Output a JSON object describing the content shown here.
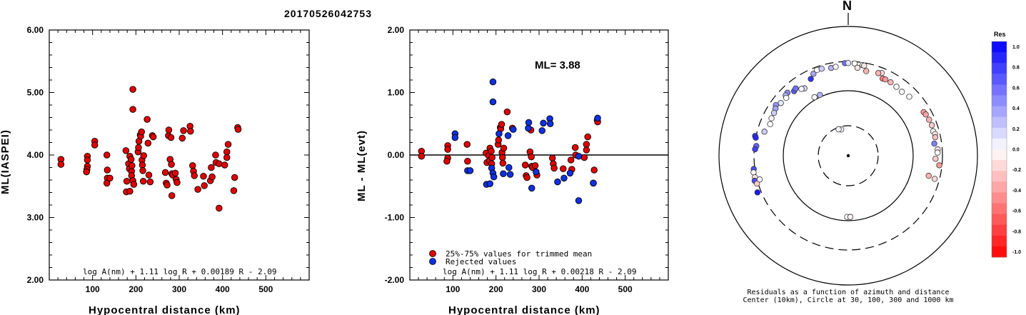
{
  "title": "20170526042753",
  "chart_data": [
    {
      "type": "scatter",
      "id": "ml-vs-distance",
      "ylabel": "ML(IASPEI)",
      "xlabel": "Hypocentral distance (km)",
      "xlim": [
        0,
        600
      ],
      "ylim": [
        2.0,
        6.0
      ],
      "xticks": [
        "100",
        "200",
        "300",
        "400",
        "500"
      ],
      "yticks": [
        "2.00",
        "3.00",
        "4.00",
        "5.00",
        "6.00"
      ],
      "formula": "log A(nm) + 1.11 log R + 0.00189 R - 2.09",
      "marker_color": "#e00000",
      "points": [
        [
          27,
          3.93
        ],
        [
          27,
          3.85
        ],
        [
          88,
          3.98
        ],
        [
          88,
          3.92
        ],
        [
          88,
          3.82
        ],
        [
          87,
          3.77
        ],
        [
          86,
          3.73
        ],
        [
          105,
          4.22
        ],
        [
          105,
          4.16
        ],
        [
          133,
          4.0
        ],
        [
          134,
          3.76
        ],
        [
          134,
          3.63
        ],
        [
          133,
          3.55
        ],
        [
          140,
          3.63
        ],
        [
          177,
          4.07
        ],
        [
          179,
          3.58
        ],
        [
          178,
          3.41
        ],
        [
          186,
          3.42
        ],
        [
          183,
          3.86
        ],
        [
          185,
          3.78
        ],
        [
          186,
          3.98
        ],
        [
          189,
          3.93
        ],
        [
          190,
          3.74
        ],
        [
          191,
          3.83
        ],
        [
          193,
          5.05
        ],
        [
          193,
          4.73
        ],
        [
          190,
          3.67
        ],
        [
          193,
          3.59
        ],
        [
          195,
          3.53
        ],
        [
          205,
          4.05
        ],
        [
          206,
          4.12
        ],
        [
          207,
          4.22
        ],
        [
          210,
          4.32
        ],
        [
          211,
          4.3
        ],
        [
          213,
          4.37
        ],
        [
          214,
          3.92
        ],
        [
          215,
          3.84
        ],
        [
          216,
          3.75
        ],
        [
          217,
          3.58
        ],
        [
          218,
          3.99
        ],
        [
          226,
          4.57
        ],
        [
          228,
          4.19
        ],
        [
          230,
          3.68
        ],
        [
          233,
          3.57
        ],
        [
          238,
          4.31
        ],
        [
          240,
          4.29
        ],
        [
          268,
          3.72
        ],
        [
          270,
          3.55
        ],
        [
          272,
          3.52
        ],
        [
          275,
          4.31
        ],
        [
          276,
          4.4
        ],
        [
          279,
          3.93
        ],
        [
          281,
          4.28
        ],
        [
          282,
          3.85
        ],
        [
          283,
          3.7
        ],
        [
          285,
          3.68
        ],
        [
          283,
          3.35
        ],
        [
          291,
          3.71
        ],
        [
          293,
          3.61
        ],
        [
          295,
          3.56
        ],
        [
          307,
          4.27
        ],
        [
          310,
          4.39
        ],
        [
          325,
          4.46
        ],
        [
          326,
          4.38
        ],
        [
          331,
          3.83
        ],
        [
          333,
          3.74
        ],
        [
          335,
          3.67
        ],
        [
          343,
          3.45
        ],
        [
          356,
          3.66
        ],
        [
          358,
          3.51
        ],
        [
          372,
          3.59
        ],
        [
          374,
          3.8
        ],
        [
          376,
          3.65
        ],
        [
          384,
          4.0
        ],
        [
          385,
          3.88
        ],
        [
          392,
          3.86
        ],
        [
          392,
          3.15
        ],
        [
          405,
          3.84
        ],
        [
          410,
          4.05
        ],
        [
          410,
          3.96
        ],
        [
          413,
          4.17
        ],
        [
          426,
          3.43
        ],
        [
          428,
          3.64
        ],
        [
          435,
          4.44
        ],
        [
          436,
          4.41
        ]
      ]
    },
    {
      "type": "scatter",
      "id": "residual-vs-distance",
      "ylabel": "ML - ML(evt)",
      "xlabel": "Hypocentral distance (km)",
      "xlim": [
        0,
        600
      ],
      "ylim": [
        -2.0,
        2.0
      ],
      "xticks": [
        "100",
        "200",
        "300",
        "400",
        "500"
      ],
      "yticks": [
        "-2.00",
        "-1.00",
        "0.00",
        "1.00",
        "2.00"
      ],
      "ml_label": "ML= 3.88",
      "formula": "log A(nm) + 1.11 log R + 0.00218 R - 2.09",
      "legend": [
        {
          "label": "25%-75% values for trimmed mean",
          "color": "#e00000"
        },
        {
          "label": "Rejected values",
          "color": "#1030e0"
        }
      ],
      "series": [
        {
          "name": "25%-75% values for trimmed mean",
          "color": "#e00000",
          "points": [
            [
              27,
              0.06
            ],
            [
              27,
              -0.02
            ],
            [
              88,
              0.15
            ],
            [
              88,
              0.09
            ],
            [
              88,
              -0.05
            ],
            [
              86,
              -0.1
            ],
            [
              133,
              0.17
            ],
            [
              134,
              -0.1
            ],
            [
              177,
              0.03
            ],
            [
              179,
              -0.12
            ],
            [
              183,
              -0.01
            ],
            [
              185,
              -0.09
            ],
            [
              186,
              0.11
            ],
            [
              189,
              0.06
            ],
            [
              190,
              -0.14
            ],
            [
              191,
              -0.04
            ],
            [
              205,
              0.17
            ],
            [
              206,
              0.24
            ],
            [
              210,
              0.44
            ],
            [
              211,
              0.42
            ],
            [
              213,
              0.49
            ],
            [
              214,
              0.04
            ],
            [
              215,
              -0.04
            ],
            [
              216,
              -0.13
            ],
            [
              218,
              0.11
            ],
            [
              226,
              0.69
            ],
            [
              238,
              0.43
            ],
            [
              268,
              -0.16
            ],
            [
              270,
              -0.33
            ],
            [
              272,
              -0.36
            ],
            [
              279,
              0.05
            ],
            [
              281,
              0.4
            ],
            [
              282,
              -0.03
            ],
            [
              283,
              -0.18
            ],
            [
              285,
              -0.2
            ],
            [
              291,
              -0.17
            ],
            [
              295,
              -0.32
            ],
            [
              331,
              -0.05
            ],
            [
              333,
              -0.14
            ],
            [
              335,
              -0.21
            ],
            [
              356,
              -0.22
            ],
            [
              374,
              -0.08
            ],
            [
              376,
              -0.23
            ],
            [
              384,
              0.12
            ],
            [
              385,
              0.0
            ],
            [
              405,
              -0.04
            ],
            [
              410,
              0.17
            ],
            [
              410,
              0.08
            ],
            [
              413,
              0.29
            ],
            [
              426,
              -0.45
            ],
            [
              428,
              -0.24
            ],
            [
              435,
              0.56
            ],
            [
              436,
              0.53
            ]
          ]
        },
        {
          "name": "Rejected values",
          "color": "#1030e0",
          "points": [
            [
              105,
              0.34
            ],
            [
              105,
              0.28
            ],
            [
              134,
              -0.25
            ],
            [
              140,
              -0.25
            ],
            [
              178,
              -0.47
            ],
            [
              186,
              -0.46
            ],
            [
              193,
              1.17
            ],
            [
              193,
              0.85
            ],
            [
              190,
              -0.21
            ],
            [
              193,
              -0.29
            ],
            [
              195,
              -0.35
            ],
            [
              207,
              0.34
            ],
            [
              217,
              -0.3
            ],
            [
              228,
              0.31
            ],
            [
              230,
              -0.2
            ],
            [
              233,
              -0.31
            ],
            [
              240,
              0.41
            ],
            [
              275,
              0.43
            ],
            [
              276,
              0.52
            ],
            [
              283,
              -0.53
            ],
            [
              293,
              -0.27
            ],
            [
              307,
              0.39
            ],
            [
              310,
              0.51
            ],
            [
              325,
              0.58
            ],
            [
              326,
              0.5
            ],
            [
              343,
              -0.43
            ],
            [
              358,
              -0.37
            ],
            [
              372,
              -0.29
            ],
            [
              392,
              -0.02
            ],
            [
              392,
              -0.73
            ],
            [
              426,
              -0.45
            ],
            [
              436,
              0.59
            ]
          ]
        }
      ]
    },
    {
      "type": "polar-scatter",
      "id": "residual-azimuth",
      "north_label": "N",
      "caption_line1": "Residuals as a function of azimuth and distance",
      "caption_line2": "Center (10km), Circle at 30, 100, 300 and 1000 km",
      "circle_distances_km": [
        30,
        100,
        300,
        1000
      ],
      "colorbar": {
        "title": "Res",
        "ticks": [
          "1.0",
          "0.8",
          "0.6",
          "0.4",
          "0.2",
          "0.0",
          "-0.2",
          "-0.4",
          "-0.6",
          "-0.8",
          "-1.0"
        ],
        "min": -1.0,
        "max": 1.0
      },
      "points_note": "residual and azimuth (deg clockwise from north) with distance in km",
      "points": [
        {
          "az": 345,
          "dist": 27,
          "res": 0.06
        },
        {
          "az": 340,
          "dist": 28,
          "res": -0.02
        },
        {
          "az": 181,
          "dist": 88,
          "res": 0.0
        },
        {
          "az": 178,
          "dist": 88,
          "res": -0.05
        },
        {
          "az": 327,
          "dist": 178,
          "res": 0.17
        },
        {
          "az": 325,
          "dist": 186,
          "res": 0.02
        },
        {
          "az": 320,
          "dist": 206,
          "res": 0.65
        },
        {
          "az": 322,
          "dist": 215,
          "res": 0.55
        },
        {
          "az": 316,
          "dist": 233,
          "res": 0.45
        },
        {
          "az": 314,
          "dist": 228,
          "res": 0.3
        },
        {
          "az": 313,
          "dist": 210,
          "res": 0.0
        },
        {
          "az": 308,
          "dist": 216,
          "res": 0.1
        },
        {
          "az": 305,
          "dist": 240,
          "res": 0.4
        },
        {
          "az": 303,
          "dist": 226,
          "res": 0.35
        },
        {
          "az": 300,
          "dist": 217,
          "res": 0.2
        },
        {
          "az": 296,
          "dist": 215,
          "res": -0.04
        },
        {
          "az": 292,
          "dist": 206,
          "res": 0.0
        },
        {
          "az": 286,
          "dist": 230,
          "res": 0.2
        },
        {
          "az": 282,
          "dist": 310,
          "res": 0.8
        },
        {
          "az": 281,
          "dist": 300,
          "res": 0.85
        },
        {
          "az": 276,
          "dist": 280,
          "res": 0.6
        },
        {
          "az": 274,
          "dist": 290,
          "res": 0.75
        },
        {
          "az": 262,
          "dist": 312,
          "res": 0.7
        },
        {
          "az": 260,
          "dist": 320,
          "res": 0.0
        },
        {
          "az": 257,
          "dist": 316,
          "res": -0.1
        },
        {
          "az": 255,
          "dist": 328,
          "res": 0.7
        },
        {
          "az": 253,
          "dist": 312,
          "res": -0.2
        },
        {
          "az": 248,
          "dist": 340,
          "res": 0.9
        },
        {
          "az": 334,
          "dist": 215,
          "res": 0.8
        },
        {
          "az": 337,
          "dist": 246,
          "res": 0.35
        },
        {
          "az": 340,
          "dist": 268,
          "res": 0.0
        },
        {
          "az": 343,
          "dist": 265,
          "res": 0.2
        },
        {
          "az": 349,
          "dist": 250,
          "res": 0.3
        },
        {
          "az": 352,
          "dist": 253,
          "res": -0.05
        },
        {
          "az": 358,
          "dist": 282,
          "res": 0.55
        },
        {
          "az": 0,
          "dist": 282,
          "res": 0.1
        },
        {
          "az": 4,
          "dist": 280,
          "res": 0.0
        },
        {
          "az": 9,
          "dist": 273,
          "res": 0.0
        },
        {
          "az": 10,
          "dist": 270,
          "res": -0.1
        },
        {
          "az": 12,
          "dist": 224,
          "res": -0.3
        },
        {
          "az": 6,
          "dist": 241,
          "res": -0.1
        },
        {
          "az": 22,
          "dist": 248,
          "res": -0.15
        },
        {
          "az": 20,
          "dist": 236,
          "res": -0.3
        },
        {
          "az": 24,
          "dist": 208,
          "res": -0.5
        },
        {
          "az": 26,
          "dist": 211,
          "res": -0.4
        },
        {
          "az": 30,
          "dist": 210,
          "res": -0.3
        },
        {
          "az": 35,
          "dist": 205,
          "res": 0.0
        },
        {
          "az": 40,
          "dist": 200,
          "res": 0.0
        },
        {
          "az": 46,
          "dist": 211,
          "res": 0.0
        },
        {
          "az": 60,
          "dist": 229,
          "res": -0.4
        },
        {
          "az": 62,
          "dist": 236,
          "res": -0.35
        },
        {
          "az": 66,
          "dist": 242,
          "res": -0.3
        },
        {
          "az": 70,
          "dist": 246,
          "res": -0.2
        },
        {
          "az": 74,
          "dist": 241,
          "res": 0.0
        },
        {
          "az": 76,
          "dist": 251,
          "res": -0.1
        },
        {
          "az": 78,
          "dist": 246,
          "res": -0.25
        },
        {
          "az": 82,
          "dist": 228,
          "res": 0.5
        },
        {
          "az": 86,
          "dist": 253,
          "res": -0.1
        },
        {
          "az": 88,
          "dist": 250,
          "res": 0.0
        },
        {
          "az": 92,
          "dist": 232,
          "res": -0.2
        },
        {
          "az": 96,
          "dist": 271,
          "res": -0.4
        },
        {
          "az": 104,
          "dist": 196,
          "res": -0.3
        },
        {
          "az": 105,
          "dist": 251,
          "res": -0.15
        },
        {
          "az": 330,
          "dist": 110,
          "res": 0.0
        },
        {
          "az": 335,
          "dist": 108,
          "res": 0.3
        },
        {
          "az": 255,
          "dist": 272,
          "res": 0.0
        }
      ]
    }
  ]
}
